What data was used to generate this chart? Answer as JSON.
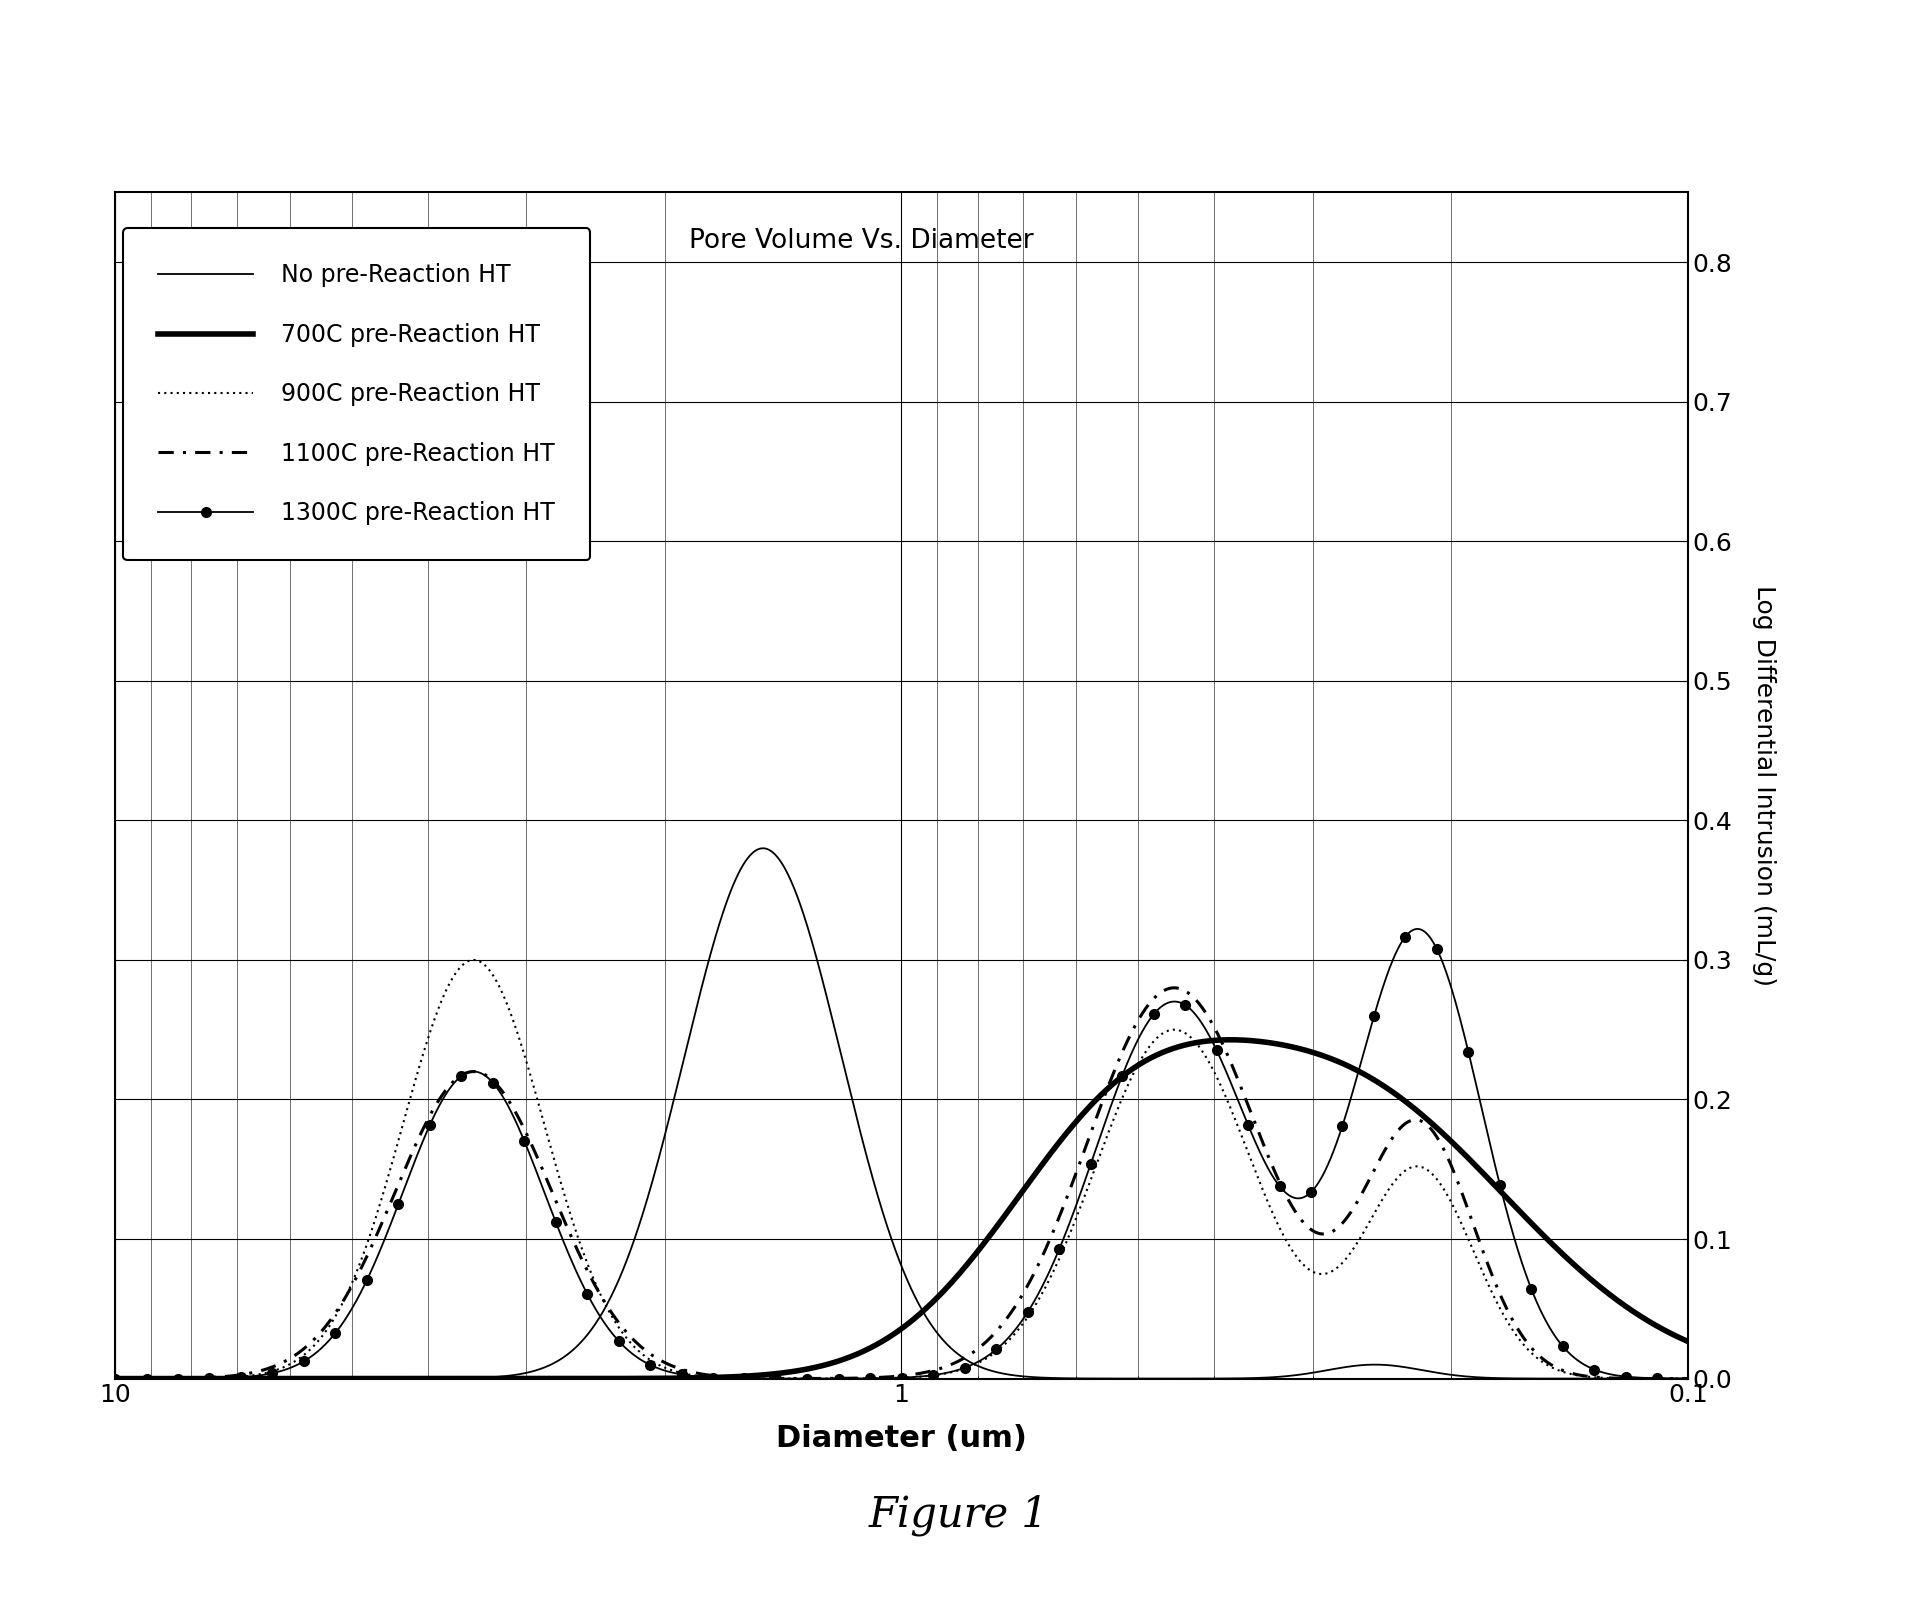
{
  "title": "Pore Volume Vs. Diameter",
  "xlabel": "Diameter (um)",
  "ylabel": "Log Differential Intrusion (mL/g",
  "figure_caption": "Figure 1",
  "x_min": 0.1,
  "x_max": 10,
  "y_min": 0.0,
  "y_max": 0.85,
  "y_ticks": [
    0.0,
    0.1,
    0.2,
    0.3,
    0.4,
    0.5,
    0.6,
    0.7,
    0.8
  ],
  "background_color": "#ffffff",
  "legend_entries": [
    "No pre-Reaction HT",
    "700C pre-Reaction HT",
    "900C pre-Reaction HT",
    "1100C pre-Reaction HT",
    "1300C pre-Reaction HT"
  ]
}
